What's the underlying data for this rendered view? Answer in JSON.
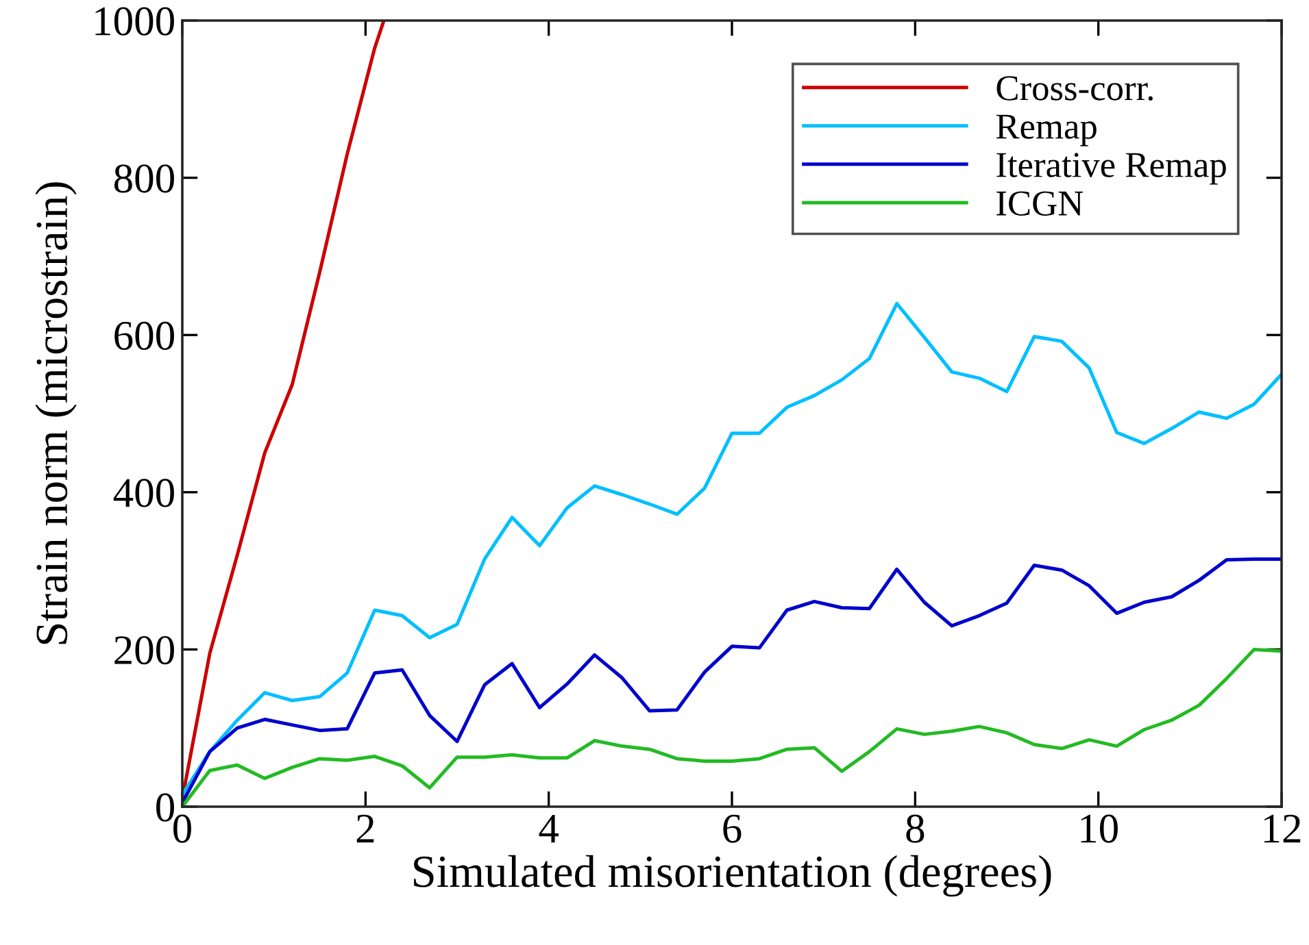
{
  "chart_data": {
    "type": "line",
    "xlabel": "Simulated misorientation (degrees)",
    "ylabel": "Strain norm (microstrain)",
    "x": [
      0,
      0.3,
      0.6,
      0.9,
      1.2,
      1.5,
      1.8,
      2.1,
      2.4,
      2.7,
      3.0,
      3.3,
      3.6,
      3.9,
      4.2,
      4.5,
      4.8,
      5.1,
      5.4,
      5.7,
      6.0,
      6.3,
      6.6,
      6.9,
      7.2,
      7.5,
      7.8,
      8.1,
      8.4,
      8.7,
      9.0,
      9.3,
      9.6,
      9.9,
      10.2,
      10.5,
      10.8,
      11.1,
      11.4,
      11.7,
      12.0
    ],
    "xlim": [
      0,
      12
    ],
    "xticks": [
      0,
      2,
      4,
      6,
      8,
      10,
      12
    ],
    "ylim": [
      0,
      1000
    ],
    "yticks": [
      0,
      200,
      400,
      600,
      800,
      1000
    ],
    "grid": false,
    "legend": "top right",
    "marker": "none",
    "line_style": "solid",
    "series": [
      {
        "name": "Cross-corr.",
        "color": "#cc0000",
        "x": [
          0,
          0.3,
          0.6,
          0.9,
          1.2,
          1.5,
          1.8,
          2.1,
          2.2
        ],
        "values": [
          10,
          195,
          320,
          450,
          537,
          680,
          830,
          965,
          1000
        ]
      },
      {
        "name": "Remap",
        "color": "#00bfff",
        "values": [
          15,
          70,
          110,
          145,
          135,
          140,
          170,
          250,
          243,
          215,
          232,
          315,
          368,
          332,
          380,
          408,
          397,
          385,
          372,
          405,
          475,
          475,
          508,
          523,
          543,
          570,
          640,
          597,
          553,
          545,
          528,
          598,
          592,
          558,
          476,
          462,
          481,
          502,
          494,
          512,
          550
        ]
      },
      {
        "name": "Iterative Remap",
        "color": "#0000cc",
        "values": [
          5,
          70,
          100,
          111,
          104,
          97,
          99,
          170,
          174,
          116,
          83,
          155,
          182,
          126,
          156,
          193,
          164,
          122,
          123,
          171,
          204,
          202,
          250,
          261,
          253,
          252,
          302,
          260,
          230,
          243,
          259,
          307,
          301,
          281,
          246,
          260,
          267,
          288,
          314,
          315,
          315
        ]
      },
      {
        "name": "ICGN",
        "color": "#22bb22",
        "values": [
          0,
          46,
          53,
          36,
          50,
          61,
          59,
          64,
          52,
          24,
          63,
          63,
          66,
          62,
          62,
          84,
          77,
          73,
          61,
          58,
          58,
          61,
          73,
          75,
          45,
          70,
          99,
          92,
          96,
          102,
          94,
          79,
          74,
          85,
          77,
          98,
          110,
          129,
          163,
          200,
          198
        ]
      }
    ]
  }
}
